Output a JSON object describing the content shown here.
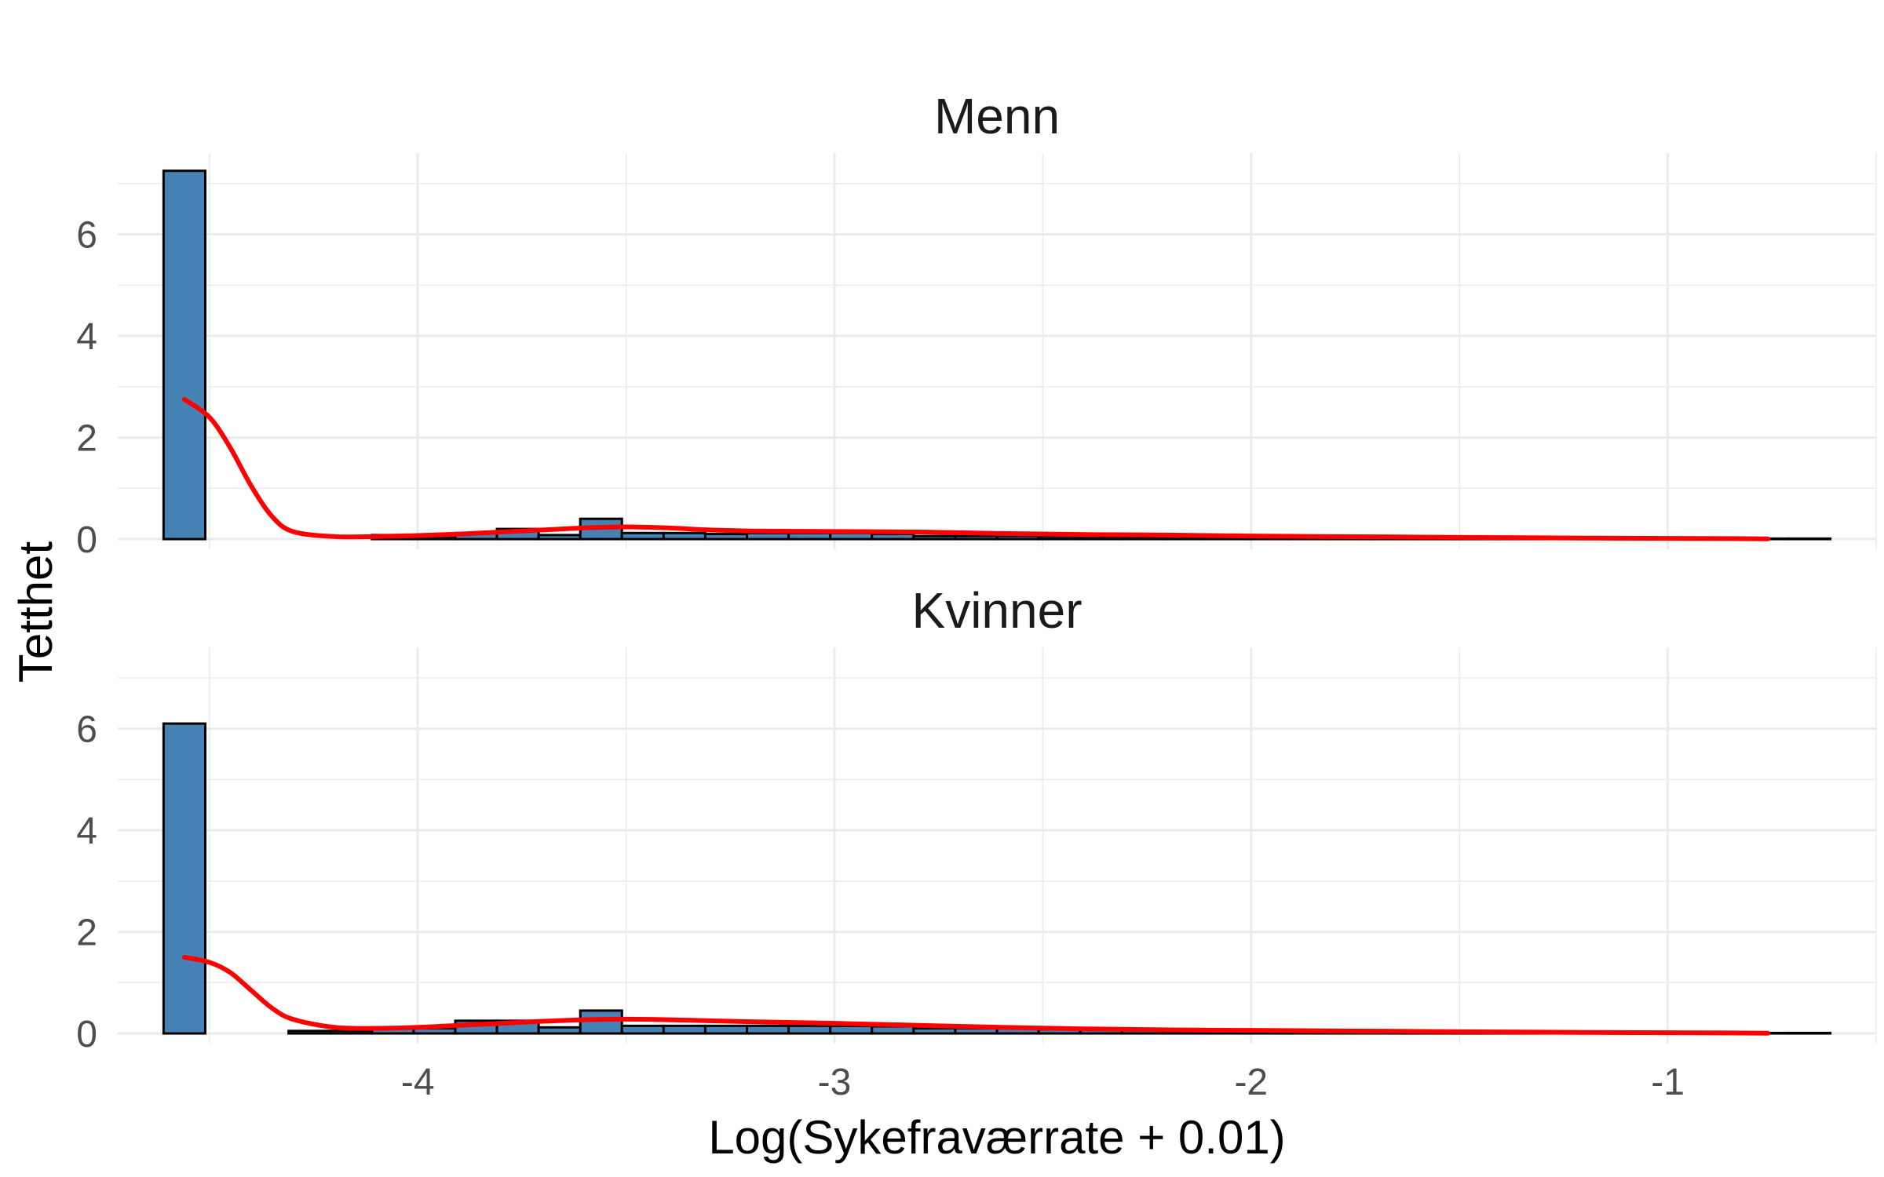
{
  "chart_data": {
    "type": "bar",
    "xlabel": "Log(Sykefraværrate + 0.01)",
    "ylabel": "Tetthet",
    "xlim": [
      -4.72,
      -0.5
    ],
    "ylim": [
      -0.2,
      7.6
    ],
    "x_ticks": [
      -4,
      -3,
      -2,
      -1
    ],
    "x_tick_labels": [
      "-4",
      "-3",
      "-2",
      "-1"
    ],
    "y_ticks": [
      0,
      2,
      4,
      6
    ],
    "y_tick_labels": [
      "0",
      "2",
      "4",
      "6"
    ],
    "grid": true,
    "bin_width": 0.1,
    "colors": {
      "bar_fill": "#4682b4",
      "bar_outline": "#000000",
      "density_line": "#ff0000",
      "grid": "#ebebeb"
    },
    "panels": [
      {
        "name": "Menn",
        "histogram": {
          "bin_centers": [
            -4.56,
            -4.46,
            -4.36,
            -4.26,
            -4.16,
            -4.06,
            -3.96,
            -3.86,
            -3.76,
            -3.66,
            -3.56,
            -3.46,
            -3.36,
            -3.26,
            -3.16,
            -3.06,
            -2.96,
            -2.86,
            -2.76,
            -2.66,
            -2.56,
            -2.46,
            -2.36,
            -2.26,
            -2.16,
            -2.06,
            -1.96,
            -1.86,
            -1.76,
            -1.66,
            -1.56,
            -1.46,
            -1.36,
            -1.26,
            -1.16,
            -1.06,
            -0.96,
            -0.86,
            -0.76,
            -0.66
          ],
          "densities": [
            7.25,
            0,
            0,
            0,
            0,
            0.08,
            0.05,
            0.12,
            0.2,
            0.08,
            0.4,
            0.12,
            0.12,
            0.1,
            0.12,
            0.12,
            0.12,
            0.1,
            0.06,
            0.06,
            0.06,
            0.05,
            0.05,
            0.04,
            0.04,
            0.04,
            0.03,
            0.03,
            0.03,
            0.02,
            0.02,
            0.02,
            0.02,
            0.01,
            0.01,
            0.01,
            0.01,
            0.01,
            0.01,
            0.01
          ]
        },
        "density_curve": {
          "x": [
            -4.56,
            -4.5,
            -4.45,
            -4.4,
            -4.35,
            -4.3,
            -4.2,
            -4.1,
            -4.0,
            -3.9,
            -3.8,
            -3.7,
            -3.6,
            -3.5,
            -3.4,
            -3.3,
            -3.2,
            -3.0,
            -2.8,
            -2.6,
            -2.4,
            -2.2,
            -2.0,
            -1.8,
            -1.6,
            -1.4,
            -1.2,
            -1.0,
            -0.85,
            -0.76
          ],
          "y": [
            2.75,
            2.4,
            1.8,
            1.05,
            0.45,
            0.15,
            0.05,
            0.05,
            0.07,
            0.1,
            0.14,
            0.18,
            0.22,
            0.24,
            0.22,
            0.18,
            0.16,
            0.15,
            0.14,
            0.11,
            0.09,
            0.08,
            0.06,
            0.05,
            0.04,
            0.03,
            0.02,
            0.015,
            0.01,
            0.005
          ]
        }
      },
      {
        "name": "Kvinner",
        "histogram": {
          "bin_centers": [
            -4.56,
            -4.46,
            -4.36,
            -4.26,
            -4.16,
            -4.06,
            -3.96,
            -3.86,
            -3.76,
            -3.66,
            -3.56,
            -3.46,
            -3.36,
            -3.26,
            -3.16,
            -3.06,
            -2.96,
            -2.86,
            -2.76,
            -2.66,
            -2.56,
            -2.46,
            -2.36,
            -2.26,
            -2.16,
            -2.06,
            -1.96,
            -1.86,
            -1.76,
            -1.66,
            -1.56,
            -1.46,
            -1.36,
            -1.26,
            -1.16,
            -1.06,
            -0.96,
            -0.86,
            -0.76,
            -0.66
          ],
          "densities": [
            6.1,
            0,
            0,
            0.05,
            0.05,
            0.12,
            0.1,
            0.25,
            0.25,
            0.12,
            0.45,
            0.15,
            0.15,
            0.15,
            0.15,
            0.15,
            0.15,
            0.14,
            0.1,
            0.1,
            0.1,
            0.08,
            0.07,
            0.06,
            0.06,
            0.05,
            0.05,
            0.04,
            0.04,
            0.03,
            0.03,
            0.02,
            0.02,
            0.02,
            0.01,
            0.01,
            0.01,
            0.01,
            0.01,
            0.01
          ]
        },
        "density_curve": {
          "x": [
            -4.56,
            -4.5,
            -4.45,
            -4.4,
            -4.35,
            -4.3,
            -4.2,
            -4.1,
            -4.0,
            -3.9,
            -3.8,
            -3.7,
            -3.6,
            -3.5,
            -3.4,
            -3.3,
            -3.2,
            -3.0,
            -2.8,
            -2.6,
            -2.4,
            -2.2,
            -2.0,
            -1.8,
            -1.6,
            -1.4,
            -1.2,
            -1.0,
            -0.85,
            -0.76
          ],
          "y": [
            1.5,
            1.4,
            1.2,
            0.85,
            0.5,
            0.28,
            0.12,
            0.1,
            0.12,
            0.16,
            0.2,
            0.24,
            0.27,
            0.28,
            0.27,
            0.25,
            0.23,
            0.2,
            0.16,
            0.12,
            0.09,
            0.07,
            0.06,
            0.05,
            0.04,
            0.03,
            0.02,
            0.015,
            0.01,
            0.005
          ]
        }
      }
    ]
  }
}
